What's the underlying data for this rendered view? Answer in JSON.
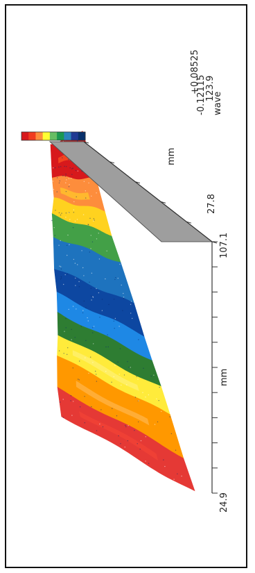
{
  "chart_data": {
    "type": "surface-3d",
    "title": "",
    "z_max_label": "+0.08525",
    "z_unit": "wave",
    "z_min_label": "-0.12115",
    "z_extra_label": "123.9",
    "z_range": [
      -0.12115,
      0.08525
    ],
    "axis_long": {
      "unit": "mm",
      "start_label": "24.9",
      "end_label": "107.1",
      "range": [
        24.9,
        107.1
      ]
    },
    "axis_depth": {
      "unit": "mm",
      "start_label": "27.8"
    },
    "colorbar": {
      "colors": [
        "#d7191c",
        "#f03b20",
        "#fd8d3c",
        "#ffff33",
        "#66bd63",
        "#1a9850",
        "#2b83ba",
        "#1f3a93",
        "#08306b"
      ]
    },
    "surface_bands": [
      {
        "from": 0.0,
        "to": 0.12,
        "color": "#d7191c"
      },
      {
        "from": 0.12,
        "to": 0.2,
        "color": "#fd8d3c"
      },
      {
        "from": 0.2,
        "to": 0.26,
        "color": "#ffd21f"
      },
      {
        "from": 0.26,
        "to": 0.34,
        "color": "#43a047"
      },
      {
        "from": 0.34,
        "to": 0.46,
        "color": "#1e73be"
      },
      {
        "from": 0.46,
        "to": 0.55,
        "color": "#0d47a1"
      },
      {
        "from": 0.55,
        "to": 0.62,
        "color": "#1e88e5"
      },
      {
        "from": 0.62,
        "to": 0.7,
        "color": "#2e7d32"
      },
      {
        "from": 0.7,
        "to": 0.78,
        "color": "#ffeb3b"
      },
      {
        "from": 0.78,
        "to": 0.9,
        "color": "#ff9800"
      },
      {
        "from": 0.9,
        "to": 1.0,
        "color": "#e53935"
      }
    ]
  }
}
